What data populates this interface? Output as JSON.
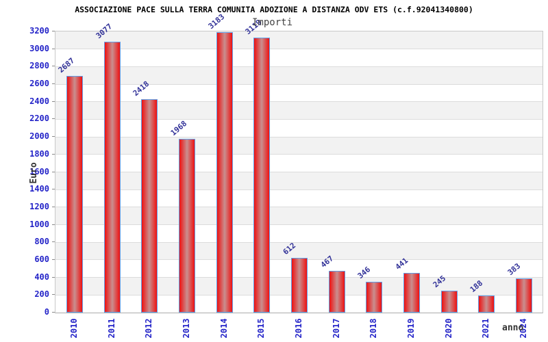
{
  "title": "ASSOCIAZIONE PACE SULLA TERRA COMUNITA ADOZIONE A DISTANZA ODV ETS (c.f.92041340800)",
  "legend": {
    "label": "Importi",
    "position": "top-center"
  },
  "axis_labels": {
    "y": "Euro",
    "x": "anno"
  },
  "chart_data": {
    "type": "bar",
    "title": "ASSOCIAZIONE PACE SULLA TERRA COMUNITA ADOZIONE A DISTANZA ODV ETS (c.f.92041340800)",
    "categories": [
      "2010",
      "2011",
      "2012",
      "2013",
      "2014",
      "2015",
      "2016",
      "2017",
      "2018",
      "2019",
      "2020",
      "2021",
      "2024"
    ],
    "series": [
      {
        "name": "Importi",
        "values": [
          2687,
          3077,
          2418,
          1968,
          3183,
          3119,
          612,
          467,
          346,
          441,
          245,
          188,
          383
        ]
      }
    ],
    "xlabel": "anno",
    "ylabel": "Euro",
    "ylim": [
      0,
      3200
    ],
    "ytick_step": 200,
    "y_ticks": [
      0,
      200,
      400,
      600,
      800,
      1000,
      1200,
      1400,
      1600,
      1800,
      2000,
      2200,
      2400,
      2600,
      2800,
      3000,
      3200
    ],
    "grid": true,
    "band_alternation": "gray-white",
    "colors": {
      "bar_edge": "#ee1111",
      "bar_center": "#c98f8f",
      "bar_border": "#5f9fe8",
      "value_label": "#333399",
      "tick_label": "#2323c8",
      "band": "#f2f2f2",
      "gridline": "#dcdcdc",
      "plot_border": "#c8c8c8",
      "axis_text": "#444444",
      "title_text": "#000000"
    }
  }
}
